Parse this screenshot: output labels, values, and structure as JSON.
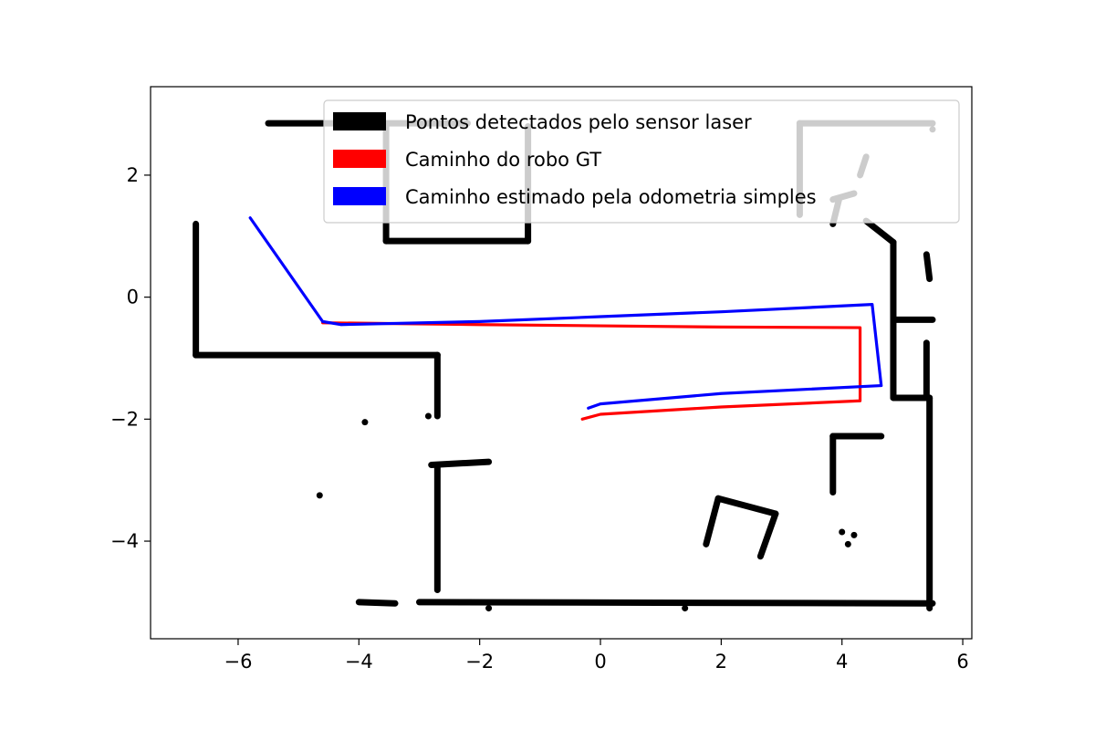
{
  "chart_data": {
    "type": "scatter",
    "title": "",
    "xlabel": "",
    "ylabel": "",
    "xlim": [
      -7.45,
      6.15
    ],
    "ylim": [
      -5.6,
      3.45
    ],
    "xticks": [
      -6,
      -4,
      -2,
      0,
      2,
      4,
      6
    ],
    "yticks": [
      -4,
      -2,
      0,
      2
    ],
    "xtick_labels": [
      "−6",
      "−4",
      "−2",
      "0",
      "2",
      "4",
      "6"
    ],
    "ytick_labels": [
      "−4",
      "−2",
      "0",
      "2"
    ],
    "grid": false,
    "legend_position": "top-right",
    "series": [
      {
        "name": "Pontos detectados pelo sensor laser",
        "color": "#000000",
        "kind": "points",
        "segments": [
          [
            [
              -5.5,
              2.85
            ],
            [
              -2.2,
              2.85
            ]
          ],
          [
            [
              -6.7,
              1.2
            ],
            [
              -6.7,
              -0.95
            ]
          ],
          [
            [
              -6.7,
              -0.95
            ],
            [
              -2.7,
              -0.95
            ]
          ],
          [
            [
              -2.7,
              -0.95
            ],
            [
              -2.7,
              -1.95
            ]
          ],
          [
            [
              -3.55,
              2.8
            ],
            [
              -3.55,
              0.92
            ]
          ],
          [
            [
              -3.55,
              0.92
            ],
            [
              -1.2,
              0.92
            ]
          ],
          [
            [
              -1.2,
              0.92
            ],
            [
              -1.2,
              2.8
            ]
          ],
          [
            [
              -2.8,
              -2.75
            ],
            [
              -1.85,
              -2.7
            ]
          ],
          [
            [
              -2.7,
              -2.75
            ],
            [
              -2.7,
              -4.8
            ]
          ],
          [
            [
              -4.0,
              -5.0
            ],
            [
              -3.4,
              -5.02
            ]
          ],
          [
            [
              -3.0,
              -5.0
            ],
            [
              5.5,
              -5.02
            ]
          ],
          [
            [
              5.45,
              -1.65
            ],
            [
              5.45,
              -5.1
            ]
          ],
          [
            [
              4.4,
              1.25
            ],
            [
              4.85,
              0.9
            ]
          ],
          [
            [
              4.85,
              0.9
            ],
            [
              4.85,
              -1.65
            ]
          ],
          [
            [
              4.85,
              -1.65
            ],
            [
              5.45,
              -1.65
            ]
          ],
          [
            [
              4.9,
              -0.37
            ],
            [
              5.5,
              -0.37
            ]
          ],
          [
            [
              5.4,
              0.7
            ],
            [
              5.45,
              0.3
            ]
          ],
          [
            [
              5.4,
              -0.75
            ],
            [
              5.4,
              -1.6
            ]
          ],
          [
            [
              3.85,
              -2.28
            ],
            [
              4.65,
              -2.28
            ]
          ],
          [
            [
              3.85,
              -2.28
            ],
            [
              3.85,
              -3.2
            ]
          ],
          [
            [
              1.95,
              -3.3
            ],
            [
              2.9,
              -3.55
            ]
          ],
          [
            [
              1.95,
              -3.3
            ],
            [
              1.75,
              -4.05
            ]
          ],
          [
            [
              2.9,
              -3.55
            ],
            [
              2.65,
              -4.25
            ]
          ],
          [
            [
              3.3,
              2.85
            ],
            [
              3.3,
              1.35
            ]
          ],
          [
            [
              3.3,
              2.85
            ],
            [
              5.5,
              2.85
            ]
          ],
          [
            [
              3.85,
              1.2
            ],
            [
              3.95,
              1.6
            ]
          ],
          [
            [
              3.85,
              1.6
            ],
            [
              4.2,
              1.7
            ]
          ],
          [
            [
              4.3,
              2.0
            ],
            [
              4.4,
              2.3
            ]
          ]
        ],
        "points": [
          [
            -3.9,
            -2.05
          ],
          [
            -4.65,
            -3.25
          ],
          [
            -2.85,
            -1.95
          ],
          [
            -1.85,
            -5.1
          ],
          [
            1.4,
            -5.1
          ],
          [
            4.0,
            -3.85
          ],
          [
            4.1,
            -4.05
          ],
          [
            4.2,
            -3.9
          ],
          [
            5.5,
            2.75
          ]
        ]
      },
      {
        "name": "Caminho do robo GT",
        "color": "#ff0000",
        "kind": "line",
        "points": [
          [
            -4.6,
            -0.42
          ],
          [
            -2,
            -0.45
          ],
          [
            0,
            -0.47
          ],
          [
            2,
            -0.49
          ],
          [
            4.3,
            -0.5
          ],
          [
            4.3,
            -1.7
          ],
          [
            2,
            -1.8
          ],
          [
            0,
            -1.92
          ],
          [
            -0.3,
            -2.0
          ]
        ]
      },
      {
        "name": "Caminho estimado pela odometria simples",
        "color": "#0000ff",
        "kind": "line",
        "points": [
          [
            -5.8,
            1.3
          ],
          [
            -4.6,
            -0.4
          ],
          [
            -4.3,
            -0.45
          ],
          [
            -2,
            -0.4
          ],
          [
            0,
            -0.32
          ],
          [
            2,
            -0.24
          ],
          [
            4.5,
            -0.12
          ],
          [
            4.65,
            -1.45
          ],
          [
            2,
            -1.58
          ],
          [
            0,
            -1.75
          ],
          [
            -0.2,
            -1.82
          ]
        ]
      }
    ]
  }
}
